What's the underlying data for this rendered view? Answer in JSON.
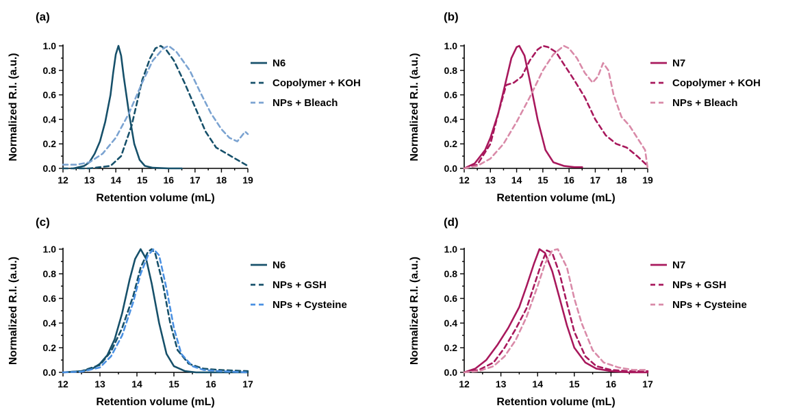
{
  "chart_data": [
    {
      "panel": "(a)",
      "type": "line",
      "xlabel": "Retention volume (mL)",
      "ylabel": "Normalized R.I. (a.u.)",
      "xlim": [
        12,
        19
      ],
      "ylim": [
        0,
        1
      ],
      "xticks": [
        "12",
        "13",
        "14",
        "15",
        "16",
        "17",
        "18",
        "19"
      ],
      "yticks": [
        "0.0",
        "0.2",
        "0.4",
        "0.6",
        "0.8",
        "1.0"
      ],
      "legend_position": "right",
      "series": [
        {
          "name": "N6",
          "color": "#16506a",
          "style": "solid",
          "x": [
            12.4,
            12.8,
            13.0,
            13.2,
            13.4,
            13.6,
            13.8,
            13.9,
            14.0,
            14.1,
            14.2,
            14.3,
            14.5,
            14.7,
            14.9,
            15.1,
            15.4,
            16.0,
            16.5
          ],
          "y": [
            0.0,
            0.02,
            0.05,
            0.12,
            0.22,
            0.38,
            0.6,
            0.78,
            0.93,
            1.0,
            0.92,
            0.75,
            0.45,
            0.2,
            0.07,
            0.02,
            0.005,
            0.0,
            0.0
          ]
        },
        {
          "name": "Copolymer + KOH",
          "color": "#16506a",
          "style": "dashed",
          "x": [
            12.0,
            13.0,
            13.8,
            14.2,
            14.6,
            15.0,
            15.3,
            15.5,
            15.7,
            15.9,
            16.2,
            16.6,
            17.0,
            17.4,
            17.8,
            18.2,
            18.6,
            19.0
          ],
          "y": [
            0.0,
            0.0,
            0.02,
            0.1,
            0.35,
            0.72,
            0.9,
            0.98,
            1.0,
            0.97,
            0.88,
            0.7,
            0.5,
            0.3,
            0.17,
            0.12,
            0.07,
            0.02
          ]
        },
        {
          "name": "NPs + Bleach",
          "color": "#7ba3d1",
          "style": "dashed",
          "x": [
            12.0,
            12.5,
            13.0,
            13.5,
            14.0,
            14.5,
            15.0,
            15.4,
            15.8,
            16.0,
            16.3,
            16.8,
            17.2,
            17.6,
            18.0,
            18.3,
            18.6,
            18.9,
            19.0
          ],
          "y": [
            0.03,
            0.03,
            0.05,
            0.12,
            0.25,
            0.45,
            0.7,
            0.88,
            0.98,
            1.0,
            0.95,
            0.8,
            0.62,
            0.45,
            0.32,
            0.25,
            0.22,
            0.3,
            0.28
          ]
        }
      ]
    },
    {
      "panel": "(b)",
      "type": "line",
      "xlabel": "Retention volume (mL)",
      "ylabel": "Normalized R.I. (a.u.)",
      "xlim": [
        12,
        19
      ],
      "ylim": [
        0,
        1
      ],
      "xticks": [
        "12",
        "13",
        "14",
        "15",
        "16",
        "17",
        "18",
        "19"
      ],
      "yticks": [
        "0.0",
        "0.2",
        "0.4",
        "0.6",
        "0.8",
        "1.0"
      ],
      "legend_position": "right",
      "series": [
        {
          "name": "N7",
          "color": "#a8185c",
          "style": "solid",
          "x": [
            12.0,
            12.4,
            12.8,
            13.0,
            13.3,
            13.6,
            13.8,
            14.0,
            14.1,
            14.3,
            14.5,
            14.8,
            15.1,
            15.4,
            15.8,
            16.2,
            16.5
          ],
          "y": [
            0.0,
            0.04,
            0.15,
            0.25,
            0.45,
            0.72,
            0.9,
            0.99,
            1.0,
            0.92,
            0.72,
            0.4,
            0.15,
            0.05,
            0.02,
            0.01,
            0.01
          ]
        },
        {
          "name": "Copolymer + KOH",
          "color": "#a8185c",
          "style": "dashed",
          "x": [
            12.0,
            12.5,
            13.0,
            13.3,
            13.6,
            13.9,
            14.2,
            14.5,
            14.8,
            15.0,
            15.2,
            15.5,
            15.8,
            16.2,
            16.6,
            17.0,
            17.4,
            17.8,
            18.2,
            18.6,
            19.0
          ],
          "y": [
            0.0,
            0.03,
            0.2,
            0.45,
            0.68,
            0.7,
            0.75,
            0.88,
            0.97,
            1.0,
            0.99,
            0.95,
            0.85,
            0.72,
            0.58,
            0.4,
            0.27,
            0.2,
            0.17,
            0.1,
            0.02
          ]
        },
        {
          "name": "NPs + Bleach",
          "color": "#d98aa8",
          "style": "dashed",
          "x": [
            12.0,
            12.5,
            13.0,
            13.5,
            14.0,
            14.5,
            15.0,
            15.4,
            15.8,
            16.0,
            16.3,
            16.6,
            16.9,
            17.1,
            17.3,
            17.5,
            17.7,
            18.0,
            18.3,
            18.6,
            18.9,
            19.0
          ],
          "y": [
            0.0,
            0.02,
            0.08,
            0.2,
            0.38,
            0.58,
            0.8,
            0.93,
            1.0,
            0.98,
            0.9,
            0.78,
            0.7,
            0.75,
            0.86,
            0.8,
            0.6,
            0.42,
            0.35,
            0.25,
            0.15,
            0.0
          ]
        }
      ]
    },
    {
      "panel": "(c)",
      "type": "line",
      "xlabel": "Retention volume (mL)",
      "ylabel": "Normalized R.I. (a.u.)",
      "xlim": [
        12,
        17
      ],
      "ylim": [
        0,
        1
      ],
      "xticks": [
        "12",
        "13",
        "14",
        "15",
        "16",
        "17"
      ],
      "yticks": [
        "0.0",
        "0.2",
        "0.4",
        "0.6",
        "0.8",
        "1.0"
      ],
      "legend_position": "right",
      "series": [
        {
          "name": "N6",
          "color": "#16506a",
          "style": "solid",
          "x": [
            12.0,
            12.5,
            12.8,
            13.0,
            13.2,
            13.4,
            13.6,
            13.8,
            13.95,
            14.1,
            14.25,
            14.4,
            14.6,
            14.8,
            15.0,
            15.3,
            15.6,
            16.0,
            17.0
          ],
          "y": [
            0.0,
            0.01,
            0.03,
            0.07,
            0.14,
            0.27,
            0.48,
            0.75,
            0.92,
            1.0,
            0.92,
            0.72,
            0.4,
            0.15,
            0.05,
            0.01,
            0.0,
            0.0,
            0.0
          ]
        },
        {
          "name": "NPs + GSH",
          "color": "#16506a",
          "style": "dashed",
          "x": [
            12.0,
            12.5,
            13.0,
            13.3,
            13.6,
            13.9,
            14.1,
            14.3,
            14.4,
            14.5,
            14.7,
            14.9,
            15.1,
            15.4,
            15.8,
            16.2,
            17.0
          ],
          "y": [
            0.0,
            0.01,
            0.06,
            0.17,
            0.36,
            0.62,
            0.85,
            0.98,
            1.0,
            0.96,
            0.72,
            0.4,
            0.18,
            0.07,
            0.03,
            0.02,
            0.01
          ]
        },
        {
          "name": "NPs + Cysteine",
          "color": "#4a90e2",
          "style": "dashed",
          "x": [
            12.0,
            12.5,
            13.0,
            13.3,
            13.6,
            13.9,
            14.1,
            14.3,
            14.45,
            14.6,
            14.8,
            15.0,
            15.2,
            15.5,
            15.8,
            16.2,
            17.0
          ],
          "y": [
            0.0,
            0.005,
            0.04,
            0.13,
            0.3,
            0.57,
            0.8,
            0.95,
            1.0,
            0.95,
            0.68,
            0.36,
            0.15,
            0.05,
            0.02,
            0.01,
            0.0
          ]
        }
      ]
    },
    {
      "panel": "(d)",
      "type": "line",
      "xlabel": "Retention volume (mL)",
      "ylabel": "Normalized R.I. (a.u.)",
      "xlim": [
        12,
        17
      ],
      "ylim": [
        0,
        1
      ],
      "xticks": [
        "12",
        "13",
        "14",
        "15",
        "16",
        "17"
      ],
      "yticks": [
        "0.0",
        "0.2",
        "0.4",
        "0.6",
        "0.8",
        "1.0"
      ],
      "legend_position": "right",
      "series": [
        {
          "name": "N7",
          "color": "#a8185c",
          "style": "solid",
          "x": [
            12.0,
            12.3,
            12.6,
            12.9,
            13.2,
            13.5,
            13.7,
            13.9,
            14.05,
            14.2,
            14.4,
            14.6,
            14.8,
            15.0,
            15.3,
            15.6,
            16.0,
            16.5,
            17.0
          ],
          "y": [
            0.0,
            0.03,
            0.1,
            0.22,
            0.36,
            0.53,
            0.7,
            0.88,
            1.0,
            0.97,
            0.82,
            0.6,
            0.38,
            0.2,
            0.08,
            0.03,
            0.01,
            0.0,
            0.0
          ]
        },
        {
          "name": "NPs + GSH",
          "color": "#a8185c",
          "style": "dashed",
          "x": [
            12.0,
            12.4,
            12.8,
            13.1,
            13.4,
            13.7,
            13.9,
            14.1,
            14.25,
            14.4,
            14.6,
            14.8,
            15.0,
            15.3,
            15.6,
            16.0,
            16.5,
            17.0
          ],
          "y": [
            0.0,
            0.02,
            0.08,
            0.2,
            0.35,
            0.52,
            0.7,
            0.88,
            0.99,
            0.97,
            0.8,
            0.56,
            0.33,
            0.13,
            0.05,
            0.02,
            0.01,
            0.01
          ]
        },
        {
          "name": "NPs + Cysteine",
          "color": "#d98aa8",
          "style": "dashed",
          "x": [
            12.0,
            12.4,
            12.8,
            13.1,
            13.4,
            13.7,
            14.0,
            14.2,
            14.4,
            14.55,
            14.8,
            15.0,
            15.2,
            15.5,
            15.8,
            16.2,
            16.6,
            17.0
          ],
          "y": [
            0.0,
            0.01,
            0.05,
            0.13,
            0.26,
            0.45,
            0.7,
            0.88,
            0.99,
            1.0,
            0.85,
            0.6,
            0.4,
            0.18,
            0.08,
            0.04,
            0.02,
            0.02
          ]
        }
      ]
    }
  ]
}
